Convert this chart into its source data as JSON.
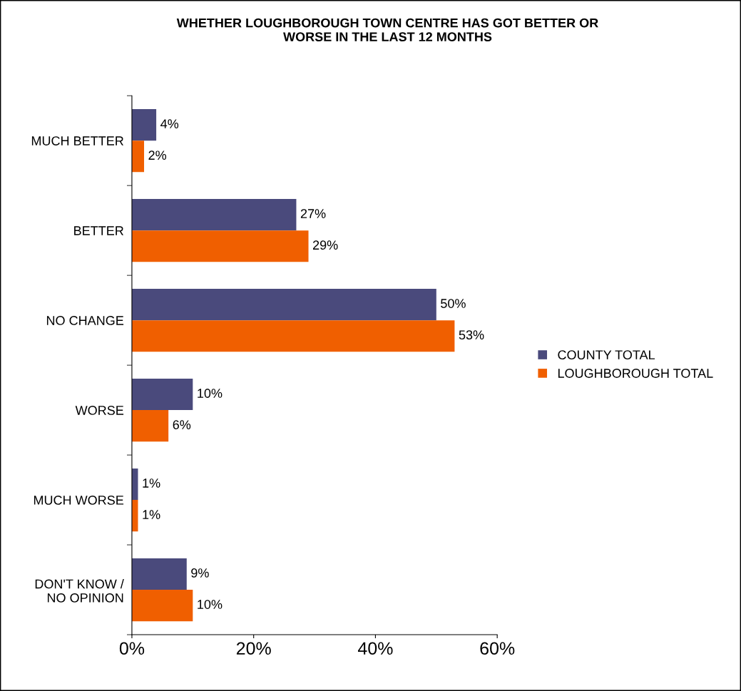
{
  "chart_data": {
    "type": "bar",
    "orientation": "horizontal",
    "title": "WHETHER LOUGHBOROUGH TOWN CENTRE HAS GOT BETTER OR\nWORSE IN THE LAST 12 MONTHS",
    "categories": [
      "MUCH BETTER",
      "BETTER",
      "NO CHANGE",
      "WORSE",
      "MUCH WORSE",
      "DON'T KNOW /\nNO OPINION"
    ],
    "series": [
      {
        "name": "COUNTY TOTAL",
        "color": "#4a4a7c",
        "values": [
          4,
          27,
          50,
          10,
          1,
          9
        ],
        "value_labels": [
          "4%",
          "27%",
          "50%",
          "10%",
          "1%",
          "9%"
        ]
      },
      {
        "name": "LOUGHBOROUGH TOTAL",
        "color": "#f05f00",
        "values": [
          2,
          29,
          53,
          6,
          1,
          10
        ],
        "value_labels": [
          "2%",
          "29%",
          "53%",
          "6%",
          "1%",
          "10%"
        ]
      }
    ],
    "xlim": [
      0,
      60
    ],
    "xticks": [
      {
        "value": 0,
        "label": "0%"
      },
      {
        "value": 20,
        "label": "20%"
      },
      {
        "value": 40,
        "label": "40%"
      },
      {
        "value": 60,
        "label": "60%"
      }
    ],
    "grid": false,
    "legend": "right"
  }
}
